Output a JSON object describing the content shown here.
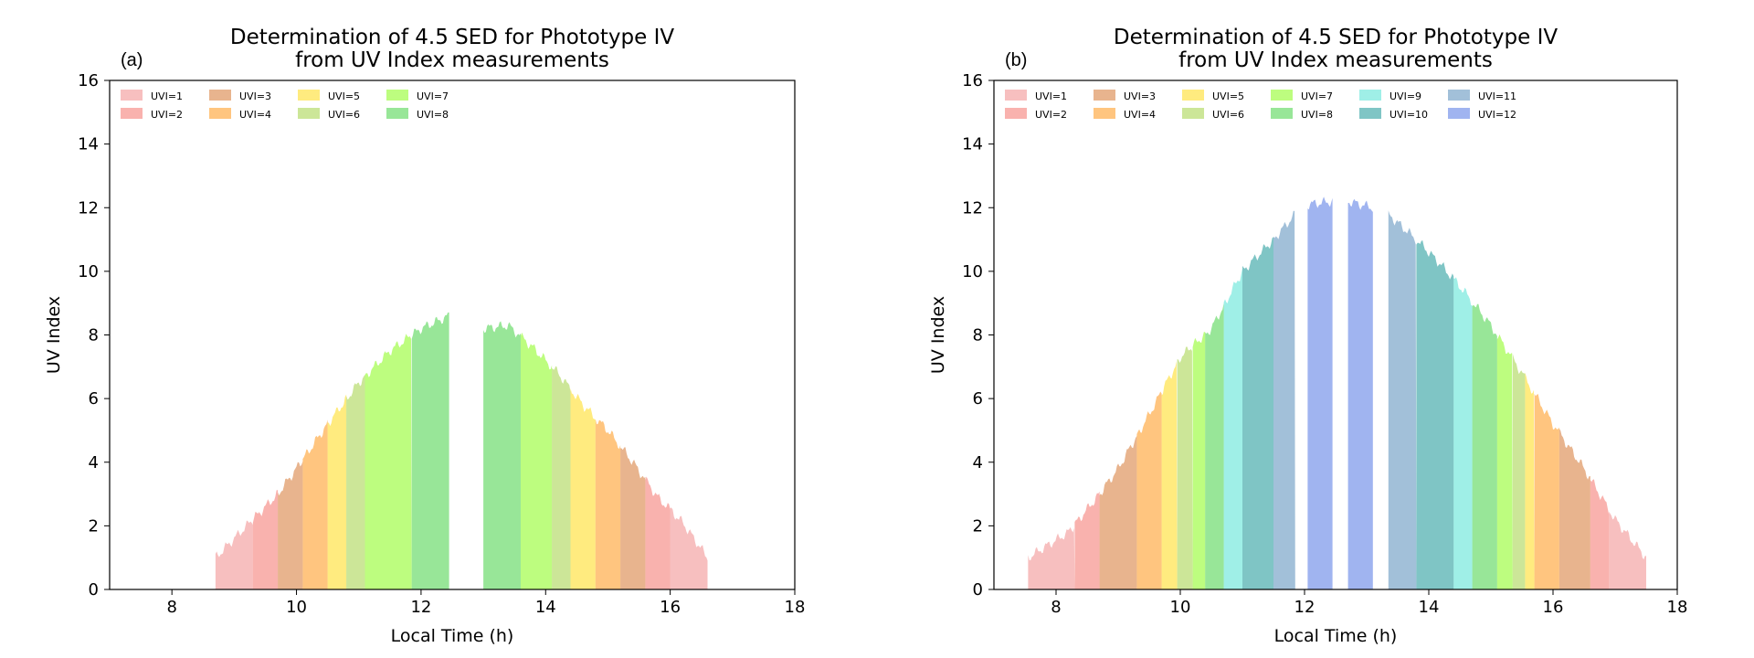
{
  "chart_data": [
    {
      "type": "area",
      "panel_label": "(a)",
      "title": "Determination of 4.5 SED for Phototype IV\nfrom UV Index measurements",
      "xlabel": "Local Time (h)",
      "ylabel": "UV Index",
      "xlim": [
        7,
        18
      ],
      "ylim": [
        0,
        16
      ],
      "xticks": [
        8,
        10,
        12,
        14,
        16,
        18
      ],
      "yticks": [
        0,
        2,
        4,
        6,
        8,
        10,
        12,
        14,
        16
      ],
      "legend": {
        "placement": "top-left",
        "columns": 7
      },
      "curve": {
        "x": [
          8.7,
          9.3,
          9.7,
          10.0,
          10.5,
          11.0,
          11.5,
          12.0,
          12.45,
          13.0,
          13.4,
          13.8,
          14.2,
          14.6,
          15.0,
          15.4,
          15.8,
          16.2,
          16.6
        ],
        "y": [
          1.0,
          2.2,
          3.0,
          3.8,
          5.2,
          6.5,
          7.5,
          8.2,
          8.6,
          8.2,
          8.3,
          7.6,
          6.8,
          5.8,
          5.0,
          4.0,
          2.9,
          2.1,
          1.0
        ]
      },
      "series": [
        {
          "name": "UVI=1",
          "color": "#f08080",
          "ranges": [
            [
              8.7,
              9.3
            ],
            [
              16.0,
              16.6
            ]
          ]
        },
        {
          "name": "UVI=2",
          "color": "#f4665e",
          "ranges": [
            [
              9.3,
              9.7
            ],
            [
              15.6,
              16.0
            ]
          ]
        },
        {
          "name": "UVI=3",
          "color": "#d2691e",
          "ranges": [
            [
              9.7,
              10.1
            ],
            [
              15.2,
              15.6
            ]
          ]
        },
        {
          "name": "UVI=4",
          "color": "#ff8c00",
          "ranges": [
            [
              10.1,
              10.5
            ],
            [
              14.8,
              15.2
            ]
          ]
        },
        {
          "name": "UVI=5",
          "color": "#ffd700",
          "ranges": [
            [
              10.5,
              10.8
            ],
            [
              14.4,
              14.8
            ]
          ]
        },
        {
          "name": "UVI=6",
          "color": "#9acd32",
          "ranges": [
            [
              10.8,
              11.1
            ],
            [
              14.1,
              14.4
            ]
          ]
        },
        {
          "name": "UVI=7",
          "color": "#7cfc00",
          "ranges": [
            [
              11.1,
              11.85
            ],
            [
              13.6,
              14.1
            ]
          ]
        },
        {
          "name": "UVI=8",
          "color": "#32cd32",
          "ranges": [
            [
              11.85,
              12.45
            ],
            [
              13.0,
              13.6
            ]
          ]
        }
      ]
    },
    {
      "type": "area",
      "panel_label": "(b)",
      "title": "Determination of 4.5 SED for Phototype IV\nfrom UV Index measurements",
      "xlabel": "Local Time (h)",
      "ylabel": "UV Index",
      "xlim": [
        7,
        18
      ],
      "ylim": [
        0,
        16
      ],
      "xticks": [
        8,
        10,
        12,
        14,
        16,
        18
      ],
      "yticks": [
        0,
        2,
        4,
        6,
        8,
        10,
        12,
        14,
        16
      ],
      "legend": {
        "placement": "top-left",
        "columns": 7
      },
      "curve": {
        "x": [
          7.55,
          8.2,
          8.7,
          9.0,
          9.5,
          10.0,
          10.5,
          11.0,
          11.5,
          11.85,
          12.05,
          12.45,
          12.7,
          13.1,
          13.4,
          13.8,
          14.2,
          14.6,
          15.0,
          15.5,
          16.0,
          16.5,
          17.0,
          17.5
        ],
        "y": [
          1.0,
          1.8,
          3.0,
          3.8,
          5.5,
          7.3,
          8.2,
          10.0,
          11.0,
          11.8,
          12.1,
          12.2,
          12.2,
          12.0,
          11.7,
          11.0,
          10.2,
          9.3,
          8.3,
          6.8,
          5.2,
          3.8,
          2.2,
          1.0
        ]
      },
      "series": [
        {
          "name": "UVI=1",
          "color": "#f08080",
          "ranges": [
            [
              7.55,
              8.3
            ],
            [
              16.9,
              17.5
            ]
          ]
        },
        {
          "name": "UVI=2",
          "color": "#f4665e",
          "ranges": [
            [
              8.3,
              8.7
            ],
            [
              16.6,
              16.9
            ]
          ]
        },
        {
          "name": "UVI=3",
          "color": "#d2691e",
          "ranges": [
            [
              8.7,
              9.3
            ],
            [
              16.1,
              16.6
            ]
          ]
        },
        {
          "name": "UVI=4",
          "color": "#ff8c00",
          "ranges": [
            [
              9.3,
              9.7
            ],
            [
              15.7,
              16.1
            ]
          ]
        },
        {
          "name": "UVI=5",
          "color": "#ffd700",
          "ranges": [
            [
              9.7,
              9.95
            ],
            [
              15.55,
              15.7
            ]
          ]
        },
        {
          "name": "UVI=6",
          "color": "#9acd32",
          "ranges": [
            [
              9.95,
              10.2
            ],
            [
              15.35,
              15.55
            ]
          ]
        },
        {
          "name": "UVI=7",
          "color": "#7cfc00",
          "ranges": [
            [
              10.2,
              10.4
            ],
            [
              15.1,
              15.35
            ]
          ]
        },
        {
          "name": "UVI=8",
          "color": "#32cd32",
          "ranges": [
            [
              10.4,
              10.7
            ],
            [
              14.7,
              15.1
            ]
          ]
        },
        {
          "name": "UVI=9",
          "color": "#40e0d0",
          "ranges": [
            [
              10.7,
              11.0
            ],
            [
              14.4,
              14.7
            ]
          ]
        },
        {
          "name": "UVI=10",
          "color": "#008b8b",
          "ranges": [
            [
              11.0,
              11.5
            ],
            [
              13.8,
              14.4
            ]
          ]
        },
        {
          "name": "UVI=11",
          "color": "#4682b4",
          "ranges": [
            [
              11.5,
              11.85
            ],
            [
              13.35,
              13.8
            ]
          ]
        },
        {
          "name": "UVI=12",
          "color": "#4169e1",
          "ranges": [
            [
              12.05,
              12.45
            ],
            [
              12.7,
              13.1
            ]
          ]
        }
      ]
    }
  ]
}
